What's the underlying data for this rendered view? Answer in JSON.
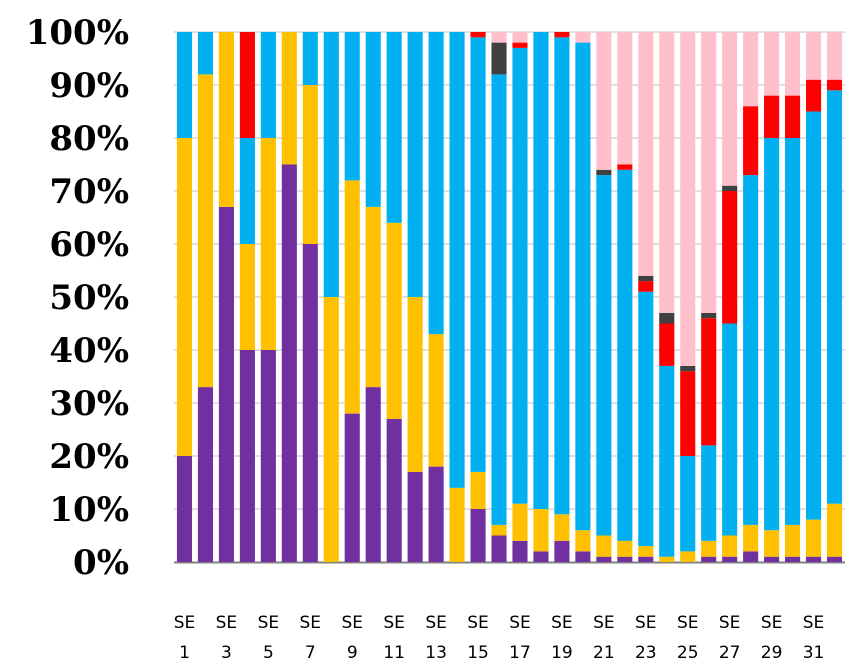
{
  "chart_data": {
    "type": "bar",
    "stacked": true,
    "percent": true,
    "ylim": [
      0,
      100
    ],
    "y_tick_labels": [
      "0%",
      "10%",
      "20%",
      "30%",
      "40%",
      "50%",
      "60%",
      "70%",
      "80%",
      "90%",
      "100%"
    ],
    "x_label_prefix": "SE",
    "categories": [
      "1",
      "2",
      "3",
      "4",
      "5",
      "6",
      "7",
      "8",
      "9",
      "10",
      "11",
      "12",
      "13",
      "14",
      "15",
      "16",
      "17",
      "18",
      "19",
      "20",
      "21",
      "22",
      "23",
      "24",
      "25",
      "26",
      "27",
      "28",
      "29",
      "30",
      "31",
      "32"
    ],
    "x_tick_every": 2,
    "grid": true,
    "legend": "none",
    "series": [
      {
        "color": "#7030a0",
        "values": [
          20,
          33,
          67,
          40,
          40,
          75,
          60,
          0,
          28,
          33,
          27,
          17,
          18,
          0,
          10,
          5,
          4,
          2,
          4,
          2,
          1,
          1,
          1,
          0,
          0,
          1,
          1,
          2,
          1,
          1,
          1,
          1
        ]
      },
      {
        "color": "#ffc000",
        "values": [
          60,
          59,
          33,
          20,
          40,
          25,
          30,
          50,
          44,
          34,
          37,
          33,
          25,
          14,
          7,
          2,
          7,
          8,
          5,
          4,
          4,
          3,
          2,
          1,
          2,
          3,
          4,
          5,
          5,
          6,
          7,
          10
        ]
      },
      {
        "color": "#00b0f0",
        "values": [
          20,
          8,
          0,
          20,
          20,
          0,
          10,
          50,
          28,
          33,
          36,
          50,
          57,
          86,
          82,
          85,
          86,
          90,
          90,
          92,
          68,
          70,
          48,
          36,
          18,
          18,
          40,
          66,
          74,
          73,
          77,
          78
        ]
      },
      {
        "color": "#ff0000",
        "values": [
          0,
          0,
          0,
          20,
          0,
          0,
          0,
          0,
          0,
          0,
          0,
          0,
          0,
          0,
          1,
          0,
          1,
          0,
          1,
          0,
          0,
          1,
          2,
          8,
          16,
          24,
          25,
          13,
          8,
          8,
          6,
          2
        ]
      },
      {
        "color": "#404040",
        "values": [
          0,
          0,
          0,
          0,
          0,
          0,
          0,
          0,
          0,
          0,
          0,
          0,
          0,
          0,
          0,
          6,
          0,
          0,
          0,
          0,
          1,
          0,
          1,
          2,
          1,
          1,
          1,
          0,
          0,
          0,
          0,
          0
        ]
      },
      {
        "color": "#ffc0cb",
        "values": [
          0,
          0,
          0,
          0,
          0,
          0,
          0,
          0,
          0,
          0,
          0,
          0,
          0,
          0,
          0,
          2,
          2,
          0,
          0,
          2,
          26,
          25,
          46,
          53,
          63,
          53,
          29,
          14,
          12,
          12,
          9,
          9
        ]
      }
    ]
  }
}
